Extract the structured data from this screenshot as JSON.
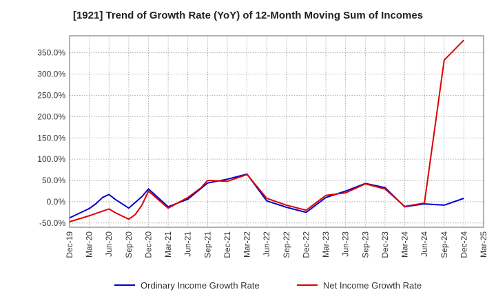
{
  "chart_data": {
    "type": "line",
    "title": "[1921]  Trend of Growth Rate (YoY) of 12-Month Moving Sum of Incomes",
    "xlabel": "",
    "ylabel": "",
    "grid": true,
    "legend_position": "bottom",
    "x": [
      "Dec-19",
      "Mar-20",
      "Jun-20",
      "Sep-20",
      "Dec-20",
      "Mar-21",
      "Jun-21",
      "Sep-21",
      "Dec-21",
      "Mar-22",
      "Jun-22",
      "Sep-22",
      "Dec-22",
      "Mar-23",
      "Jun-23",
      "Sep-23",
      "Dec-23",
      "Mar-24",
      "Jun-24",
      "Sep-24",
      "Dec-24",
      "Mar-25"
    ],
    "ylim": [
      -60,
      390
    ],
    "yticks": [
      -50,
      0,
      50,
      100,
      150,
      200,
      250,
      300,
      350
    ],
    "ytick_labels": [
      "-50.0%",
      "0.0%",
      "50.0%",
      "100.0%",
      "150.0%",
      "200.0%",
      "250.0%",
      "300.0%",
      "350.0%"
    ],
    "series": [
      {
        "name": "Ordinary Income Growth Rate",
        "color": "#0000cc",
        "points": [
          {
            "q": 0,
            "y": -38
          },
          {
            "q": 1,
            "y": -16
          },
          {
            "q": 1.33,
            "y": -5
          },
          {
            "q": 1.67,
            "y": 10
          },
          {
            "q": 2,
            "y": 17
          },
          {
            "q": 2.33,
            "y": 5
          },
          {
            "q": 3,
            "y": -15
          },
          {
            "q": 3.67,
            "y": 12
          },
          {
            "q": 4,
            "y": 30
          },
          {
            "q": 5,
            "y": -12
          },
          {
            "q": 6,
            "y": 6
          },
          {
            "q": 7,
            "y": 44
          },
          {
            "q": 8,
            "y": 53
          },
          {
            "q": 9,
            "y": 65
          },
          {
            "q": 10,
            "y": 2
          },
          {
            "q": 11,
            "y": -13
          },
          {
            "q": 12,
            "y": -25
          },
          {
            "q": 13,
            "y": 10
          },
          {
            "q": 14,
            "y": 25
          },
          {
            "q": 15,
            "y": 43
          },
          {
            "q": 16,
            "y": 33
          },
          {
            "q": 17,
            "y": -12
          },
          {
            "q": 18,
            "y": -5
          },
          {
            "q": 19,
            "y": -8
          },
          {
            "q": 20,
            "y": 8
          }
        ]
      },
      {
        "name": "Net Income Growth Rate",
        "color": "#dd0000",
        "points": [
          {
            "q": 0,
            "y": -47
          },
          {
            "q": 1,
            "y": -33
          },
          {
            "q": 2,
            "y": -17
          },
          {
            "q": 2.33,
            "y": -26
          },
          {
            "q": 3,
            "y": -41
          },
          {
            "q": 3.33,
            "y": -30
          },
          {
            "q": 3.67,
            "y": -8
          },
          {
            "q": 4,
            "y": 25
          },
          {
            "q": 5,
            "y": -15
          },
          {
            "q": 6,
            "y": 10
          },
          {
            "q": 6.67,
            "y": 33
          },
          {
            "q": 7,
            "y": 50
          },
          {
            "q": 8,
            "y": 48
          },
          {
            "q": 9,
            "y": 64
          },
          {
            "q": 10,
            "y": 8
          },
          {
            "q": 11,
            "y": -8
          },
          {
            "q": 12,
            "y": -20
          },
          {
            "q": 13,
            "y": 15
          },
          {
            "q": 14,
            "y": 21
          },
          {
            "q": 15,
            "y": 42
          },
          {
            "q": 16,
            "y": 30
          },
          {
            "q": 17,
            "y": -11
          },
          {
            "q": 18,
            "y": -3
          },
          {
            "q": 19,
            "y": 333
          },
          {
            "q": 20,
            "y": 380
          }
        ]
      }
    ]
  }
}
